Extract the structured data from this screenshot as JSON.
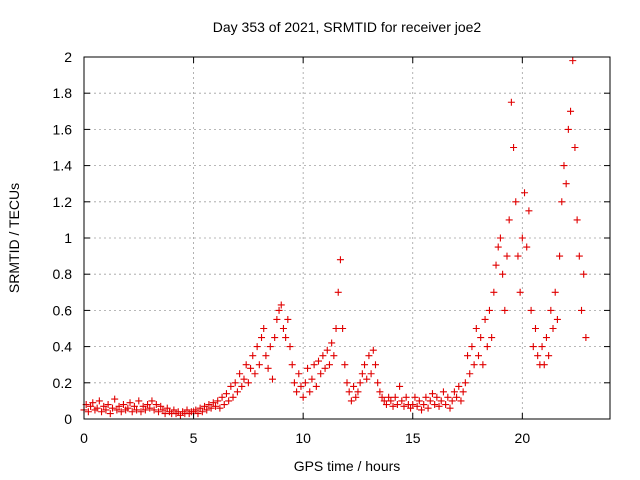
{
  "chart_data": {
    "type": "scatter",
    "title": "Day 353 of 2021, SRMTID for receiver joe2",
    "xlabel": "GPS time / hours",
    "ylabel": "SRMTID / TECUs",
    "xlim": [
      0,
      24
    ],
    "ylim": [
      0,
      2
    ],
    "x_ticks": [
      0,
      5,
      10,
      15,
      20
    ],
    "x_tick_labels": [
      "0",
      "5",
      "10",
      "15",
      "20"
    ],
    "y_ticks": [
      0,
      0.2,
      0.4,
      0.6,
      0.8,
      1.0,
      1.2,
      1.4,
      1.6,
      1.8,
      2.0
    ],
    "y_tick_labels": [
      "0",
      "0.2",
      "0.4",
      "0.6",
      "0.8",
      "1",
      "1.2",
      "1.4",
      "1.6",
      "1.8",
      "2"
    ],
    "grid": true,
    "marker": "+",
    "color": "#e00000",
    "series": [
      {
        "name": "SRMTID",
        "points": [
          [
            0.0,
            0.05
          ],
          [
            0.1,
            0.08
          ],
          [
            0.2,
            0.04
          ],
          [
            0.3,
            0.07
          ],
          [
            0.4,
            0.09
          ],
          [
            0.5,
            0.05
          ],
          [
            0.6,
            0.06
          ],
          [
            0.7,
            0.1
          ],
          [
            0.8,
            0.04
          ],
          [
            0.9,
            0.07
          ],
          [
            1.0,
            0.05
          ],
          [
            1.1,
            0.08
          ],
          [
            1.2,
            0.03
          ],
          [
            1.3,
            0.06
          ],
          [
            1.4,
            0.11
          ],
          [
            1.5,
            0.05
          ],
          [
            1.6,
            0.07
          ],
          [
            1.7,
            0.04
          ],
          [
            1.8,
            0.08
          ],
          [
            1.9,
            0.05
          ],
          [
            2.0,
            0.06
          ],
          [
            2.1,
            0.09
          ],
          [
            2.2,
            0.04
          ],
          [
            2.3,
            0.07
          ],
          [
            2.4,
            0.05
          ],
          [
            2.5,
            0.1
          ],
          [
            2.6,
            0.04
          ],
          [
            2.7,
            0.07
          ],
          [
            2.8,
            0.05
          ],
          [
            2.9,
            0.08
          ],
          [
            3.0,
            0.06
          ],
          [
            3.1,
            0.1
          ],
          [
            3.2,
            0.05
          ],
          [
            3.3,
            0.08
          ],
          [
            3.4,
            0.04
          ],
          [
            3.5,
            0.07
          ],
          [
            3.6,
            0.05
          ],
          [
            3.7,
            0.03
          ],
          [
            3.8,
            0.06
          ],
          [
            3.9,
            0.04
          ],
          [
            4.0,
            0.03
          ],
          [
            4.1,
            0.05
          ],
          [
            4.2,
            0.03
          ],
          [
            4.3,
            0.04
          ],
          [
            4.4,
            0.02
          ],
          [
            4.5,
            0.04
          ],
          [
            4.6,
            0.03
          ],
          [
            4.7,
            0.05
          ],
          [
            4.8,
            0.03
          ],
          [
            4.9,
            0.04
          ],
          [
            5.0,
            0.04
          ],
          [
            5.1,
            0.05
          ],
          [
            5.2,
            0.03
          ],
          [
            5.3,
            0.06
          ],
          [
            5.4,
            0.04
          ],
          [
            5.5,
            0.07
          ],
          [
            5.6,
            0.05
          ],
          [
            5.7,
            0.08
          ],
          [
            5.8,
            0.06
          ],
          [
            5.9,
            0.09
          ],
          [
            6.0,
            0.07
          ],
          [
            6.1,
            0.1
          ],
          [
            6.2,
            0.06
          ],
          [
            6.3,
            0.12
          ],
          [
            6.4,
            0.08
          ],
          [
            6.5,
            0.14
          ],
          [
            6.6,
            0.1
          ],
          [
            6.7,
            0.18
          ],
          [
            6.8,
            0.12
          ],
          [
            6.9,
            0.2
          ],
          [
            7.0,
            0.15
          ],
          [
            7.1,
            0.25
          ],
          [
            7.2,
            0.18
          ],
          [
            7.3,
            0.22
          ],
          [
            7.4,
            0.3
          ],
          [
            7.5,
            0.2
          ],
          [
            7.6,
            0.28
          ],
          [
            7.7,
            0.35
          ],
          [
            7.8,
            0.25
          ],
          [
            7.9,
            0.4
          ],
          [
            8.0,
            0.3
          ],
          [
            8.1,
            0.45
          ],
          [
            8.2,
            0.5
          ],
          [
            8.3,
            0.35
          ],
          [
            8.4,
            0.28
          ],
          [
            8.5,
            0.4
          ],
          [
            8.6,
            0.22
          ],
          [
            8.7,
            0.45
          ],
          [
            8.8,
            0.55
          ],
          [
            8.9,
            0.6
          ],
          [
            9.0,
            0.63
          ],
          [
            9.1,
            0.5
          ],
          [
            9.2,
            0.45
          ],
          [
            9.3,
            0.55
          ],
          [
            9.4,
            0.4
          ],
          [
            9.5,
            0.3
          ],
          [
            9.6,
            0.2
          ],
          [
            9.7,
            0.15
          ],
          [
            9.8,
            0.25
          ],
          [
            9.9,
            0.18
          ],
          [
            10.0,
            0.12
          ],
          [
            10.1,
            0.2
          ],
          [
            10.2,
            0.28
          ],
          [
            10.3,
            0.15
          ],
          [
            10.4,
            0.22
          ],
          [
            10.5,
            0.3
          ],
          [
            10.6,
            0.18
          ],
          [
            10.7,
            0.32
          ],
          [
            10.8,
            0.25
          ],
          [
            10.9,
            0.35
          ],
          [
            11.0,
            0.28
          ],
          [
            11.1,
            0.38
          ],
          [
            11.2,
            0.3
          ],
          [
            11.3,
            0.42
          ],
          [
            11.4,
            0.35
          ],
          [
            11.5,
            0.5
          ],
          [
            11.6,
            0.7
          ],
          [
            11.7,
            0.88
          ],
          [
            11.8,
            0.5
          ],
          [
            11.9,
            0.3
          ],
          [
            12.0,
            0.2
          ],
          [
            12.1,
            0.15
          ],
          [
            12.2,
            0.1
          ],
          [
            12.3,
            0.18
          ],
          [
            12.4,
            0.12
          ],
          [
            12.5,
            0.15
          ],
          [
            12.6,
            0.2
          ],
          [
            12.7,
            0.25
          ],
          [
            12.8,
            0.3
          ],
          [
            12.9,
            0.22
          ],
          [
            13.0,
            0.35
          ],
          [
            13.1,
            0.25
          ],
          [
            13.2,
            0.38
          ],
          [
            13.3,
            0.3
          ],
          [
            13.4,
            0.2
          ],
          [
            13.5,
            0.15
          ],
          [
            13.6,
            0.12
          ],
          [
            13.7,
            0.1
          ],
          [
            13.8,
            0.08
          ],
          [
            13.9,
            0.12
          ],
          [
            14.0,
            0.1
          ],
          [
            14.1,
            0.07
          ],
          [
            14.2,
            0.12
          ],
          [
            14.3,
            0.08
          ],
          [
            14.4,
            0.18
          ],
          [
            14.5,
            0.1
          ],
          [
            14.6,
            0.07
          ],
          [
            14.7,
            0.12
          ],
          [
            14.8,
            0.08
          ],
          [
            14.9,
            0.06
          ],
          [
            15.0,
            0.08
          ],
          [
            15.1,
            0.12
          ],
          [
            15.2,
            0.07
          ],
          [
            15.3,
            0.1
          ],
          [
            15.4,
            0.05
          ],
          [
            15.5,
            0.08
          ],
          [
            15.6,
            0.12
          ],
          [
            15.7,
            0.06
          ],
          [
            15.8,
            0.1
          ],
          [
            15.9,
            0.14
          ],
          [
            16.0,
            0.08
          ],
          [
            16.1,
            0.12
          ],
          [
            16.2,
            0.07
          ],
          [
            16.3,
            0.1
          ],
          [
            16.4,
            0.15
          ],
          [
            16.5,
            0.08
          ],
          [
            16.6,
            0.12
          ],
          [
            16.7,
            0.06
          ],
          [
            16.8,
            0.1
          ],
          [
            16.9,
            0.15
          ],
          [
            17.0,
            0.12
          ],
          [
            17.1,
            0.18
          ],
          [
            17.2,
            0.1
          ],
          [
            17.3,
            0.15
          ],
          [
            17.4,
            0.2
          ],
          [
            17.5,
            0.35
          ],
          [
            17.6,
            0.25
          ],
          [
            17.7,
            0.4
          ],
          [
            17.8,
            0.3
          ],
          [
            17.9,
            0.5
          ],
          [
            18.0,
            0.35
          ],
          [
            18.1,
            0.45
          ],
          [
            18.2,
            0.3
          ],
          [
            18.3,
            0.55
          ],
          [
            18.4,
            0.4
          ],
          [
            18.5,
            0.6
          ],
          [
            18.6,
            0.45
          ],
          [
            18.7,
            0.7
          ],
          [
            18.8,
            0.85
          ],
          [
            18.9,
            0.95
          ],
          [
            19.0,
            1.0
          ],
          [
            19.1,
            0.8
          ],
          [
            19.2,
            0.6
          ],
          [
            19.3,
            0.9
          ],
          [
            19.4,
            1.1
          ],
          [
            19.5,
            1.75
          ],
          [
            19.6,
            1.5
          ],
          [
            19.7,
            1.2
          ],
          [
            19.8,
            0.9
          ],
          [
            19.9,
            0.7
          ],
          [
            20.0,
            1.0
          ],
          [
            20.1,
            1.25
          ],
          [
            20.2,
            0.95
          ],
          [
            20.3,
            1.15
          ],
          [
            20.4,
            0.6
          ],
          [
            20.5,
            0.4
          ],
          [
            20.6,
            0.5
          ],
          [
            20.7,
            0.35
          ],
          [
            20.8,
            0.3
          ],
          [
            20.9,
            0.4
          ],
          [
            21.0,
            0.3
          ],
          [
            21.1,
            0.45
          ],
          [
            21.2,
            0.35
          ],
          [
            21.3,
            0.6
          ],
          [
            21.4,
            0.5
          ],
          [
            21.5,
            0.7
          ],
          [
            21.6,
            0.55
          ],
          [
            21.7,
            0.9
          ],
          [
            21.8,
            1.2
          ],
          [
            21.9,
            1.4
          ],
          [
            22.0,
            1.3
          ],
          [
            22.1,
            1.6
          ],
          [
            22.2,
            1.7
          ],
          [
            22.3,
            1.98
          ],
          [
            22.4,
            1.5
          ],
          [
            22.5,
            1.1
          ],
          [
            22.6,
            0.9
          ],
          [
            22.7,
            0.6
          ],
          [
            22.8,
            0.8
          ],
          [
            22.9,
            0.45
          ]
        ]
      }
    ]
  }
}
